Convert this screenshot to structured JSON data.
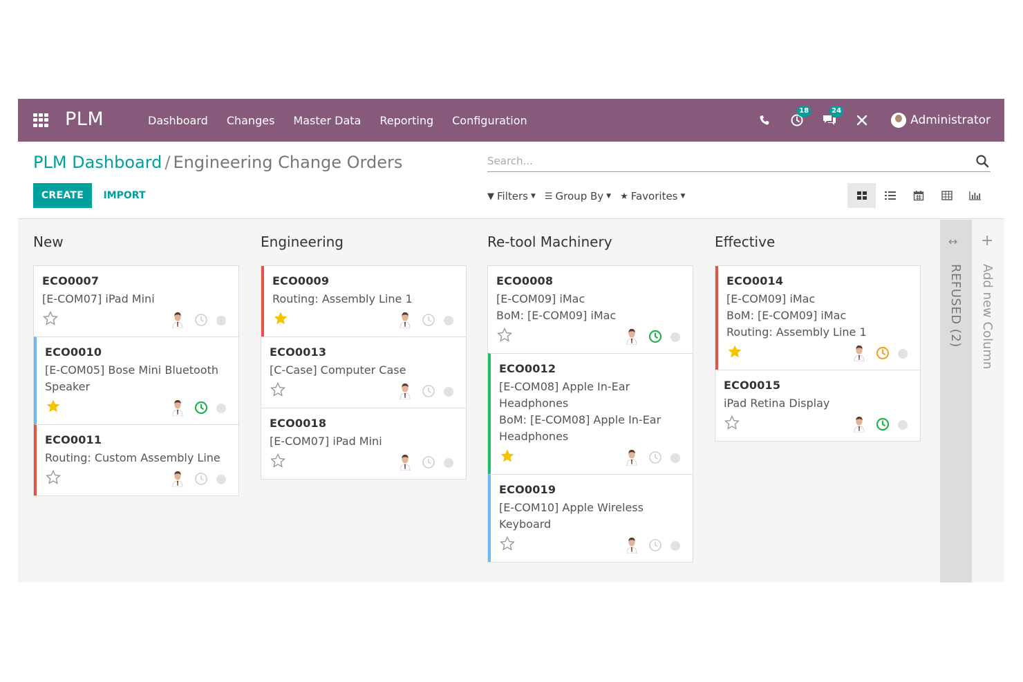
{
  "navbar": {
    "brand": "PLM",
    "menu": [
      "Dashboard",
      "Changes",
      "Master Data",
      "Reporting",
      "Configuration"
    ],
    "activities_count": "18",
    "messages_count": "24",
    "user": "Administrator",
    "color": "#875a7b",
    "badge_color": "#00a09d"
  },
  "breadcrumb": {
    "parent": "PLM Dashboard",
    "separator": "/",
    "current": "Engineering Change Orders"
  },
  "search": {
    "placeholder": "Search..."
  },
  "buttons": {
    "create": "CREATE",
    "import": "IMPORT"
  },
  "search_options": {
    "filters": "Filters",
    "group_by": "Group By",
    "favorites": "Favorites"
  },
  "views": [
    "kanban-view",
    "list-view",
    "calendar-view",
    "pivot-view",
    "graph-view"
  ],
  "kanban": {
    "columns": [
      {
        "title": "New",
        "cards": [
          {
            "ref": "ECO0007",
            "lines": [
              "[E-COM07] iPad Mini"
            ],
            "starred": false,
            "activity": "none",
            "stripe": ""
          },
          {
            "ref": "ECO0010",
            "lines": [
              "[E-COM05] Bose Mini Bluetooth",
              "Speaker"
            ],
            "starred": true,
            "activity": "planned",
            "stripe": "blue"
          },
          {
            "ref": "ECO0011",
            "lines": [
              "Routing: Custom Assembly Line"
            ],
            "starred": false,
            "activity": "none",
            "stripe": "red"
          }
        ]
      },
      {
        "title": "Engineering",
        "cards": [
          {
            "ref": "ECO0009",
            "lines": [
              "Routing: Assembly Line 1"
            ],
            "starred": true,
            "activity": "none",
            "stripe": "red"
          },
          {
            "ref": "ECO0013",
            "lines": [
              "[C-Case] Computer Case"
            ],
            "starred": false,
            "activity": "none",
            "stripe": ""
          },
          {
            "ref": "ECO0018",
            "lines": [
              "[E-COM07] iPad Mini"
            ],
            "starred": false,
            "activity": "none",
            "stripe": ""
          }
        ]
      },
      {
        "title": "Re-tool Machinery",
        "cards": [
          {
            "ref": "ECO0008",
            "lines": [
              "[E-COM09] iMac",
              "BoM: [E-COM09] iMac"
            ],
            "starred": false,
            "activity": "planned",
            "stripe": ""
          },
          {
            "ref": "ECO0012",
            "lines": [
              "[E-COM08] Apple In-Ear",
              "Headphones",
              "BoM: [E-COM08] Apple In-Ear",
              "Headphones"
            ],
            "starred": true,
            "activity": "none",
            "stripe": "green"
          },
          {
            "ref": "ECO0019",
            "lines": [
              "[E-COM10] Apple Wireless",
              "Keyboard"
            ],
            "starred": false,
            "activity": "none",
            "stripe": "blue"
          }
        ]
      },
      {
        "title": "Effective",
        "cards": [
          {
            "ref": "ECO0014",
            "lines": [
              "[E-COM09] iMac",
              "BoM: [E-COM09] iMac",
              "Routing: Assembly Line 1"
            ],
            "starred": true,
            "activity": "today",
            "stripe": "red"
          },
          {
            "ref": "ECO0015",
            "lines": [
              "iPad Retina Display"
            ],
            "starred": false,
            "activity": "planned",
            "stripe": ""
          }
        ]
      }
    ],
    "folded_column": "REFUSED (2)",
    "add_column": "Add new Column",
    "colors": {
      "star_on": "#f5c400",
      "activity_planned": "#21b24f",
      "activity_today": "#f0a52a",
      "activity_none": "#cfcfcf"
    }
  }
}
